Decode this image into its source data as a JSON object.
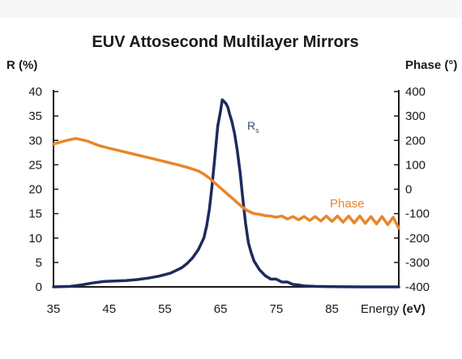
{
  "chart_data": {
    "type": "line",
    "title": "EUV Attosecond Multilayer Mirrors",
    "xlabel_prefix": "Energy",
    "xlabel_unit": "(eV)",
    "ylabel_left": "R (%)",
    "ylabel_right": "Phase (°)",
    "xlim": [
      35,
      97
    ],
    "ylim_left": [
      0,
      40
    ],
    "ylim_right": [
      -400,
      400
    ],
    "x_ticks": [
      "35",
      "45",
      "55",
      "65",
      "75",
      "85"
    ],
    "y_left_ticks": [
      "0",
      "5",
      "10",
      "15",
      "20",
      "25",
      "30",
      "35",
      "40"
    ],
    "y_right_ticks": [
      "-400",
      "-300",
      "-200",
      "-100",
      "0",
      "100",
      "200",
      "300",
      "400"
    ],
    "grid": false,
    "annotations": {
      "rs_main": "R",
      "rs_sub": "s",
      "phase": "Phase"
    },
    "series": [
      {
        "axis": "left",
        "color": "#1f2a5c",
        "x": [
          35,
          38,
          40,
          42,
          44,
          46,
          48,
          50,
          52,
          54,
          56,
          58,
          59,
          60,
          61,
          62,
          62.5,
          63,
          63.5,
          64,
          64.5,
          65,
          65.3,
          65.6,
          66,
          66.3,
          66.6,
          67,
          67.5,
          68,
          68.5,
          69,
          69.5,
          70,
          70.5,
          71,
          72,
          73,
          74,
          75,
          76,
          77,
          78,
          79,
          80,
          82,
          85,
          90,
          97
        ],
        "y": [
          0,
          0.1,
          0.4,
          0.8,
          1.1,
          1.2,
          1.3,
          1.5,
          1.8,
          2.2,
          2.8,
          3.9,
          4.8,
          6,
          7.6,
          10,
          12.5,
          16,
          21,
          27,
          33,
          36,
          38.3,
          38,
          37.5,
          36.8,
          35.5,
          34,
          31.5,
          28,
          23.5,
          18,
          13,
          9,
          7,
          5.3,
          3.5,
          2.3,
          1.6,
          1.6,
          1.0,
          1.0,
          0.5,
          0.4,
          0.2,
          0.1,
          0.05,
          0,
          0
        ]
      },
      {
        "axis": "right",
        "color": "#e8862a",
        "x": [
          35,
          37,
          39,
          41,
          43,
          45,
          47,
          49,
          51,
          53,
          55,
          57,
          59,
          61,
          62,
          63,
          64,
          65,
          66,
          67,
          68,
          69,
          70,
          71,
          72,
          73,
          74,
          75,
          76,
          77,
          78,
          79,
          80,
          81,
          82,
          83,
          84,
          85,
          86,
          87,
          88,
          89,
          90,
          91,
          92,
          93,
          94,
          95,
          96,
          97
        ],
        "y": [
          185,
          198,
          208,
          198,
          180,
          168,
          157,
          146,
          135,
          124,
          113,
          102,
          90,
          75,
          62,
          45,
          25,
          5,
          -15,
          -35,
          -55,
          -75,
          -90,
          -100,
          -103,
          -108,
          -110,
          -115,
          -110,
          -122,
          -112,
          -125,
          -112,
          -128,
          -112,
          -130,
          -110,
          -132,
          -110,
          -135,
          -110,
          -138,
          -110,
          -140,
          -112,
          -142,
          -112,
          -145,
          -115,
          -160
        ]
      }
    ]
  }
}
